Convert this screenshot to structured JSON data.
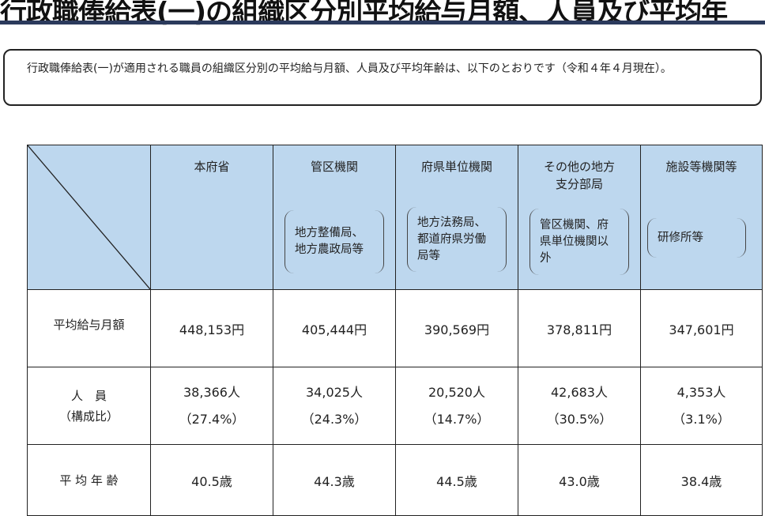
{
  "title": "行政職俸給表(一)の組織区分別平均給与月額、人員及び平均年",
  "note": "行政職俸給表(一)が適用される職員の組織区分別の平均給与月額、人員及び平均年齢は、以下のとおりです（令和４年４月現在）。",
  "table": {
    "columns": [
      {
        "name": "本府省",
        "detail": ""
      },
      {
        "name": "管区機関",
        "detail": "地方整備局、地方農政局等"
      },
      {
        "name": "府県単位機関",
        "detail": "地方法務局、都道府県労働局等"
      },
      {
        "name": "その他の地方支分部局",
        "detail": "管区機関、府県単位機関以外"
      },
      {
        "name": "施設等機関等",
        "detail": "研修所等"
      }
    ],
    "rows": [
      {
        "label": "平均給与月額",
        "values": [
          "448,153円",
          "405,444円",
          "390,569円",
          "378,811円",
          "347,601円"
        ]
      },
      {
        "label": "人　員",
        "label2": "（構成比）",
        "values": [
          "38,366人",
          "34,025人",
          "20,520人",
          "42,683人",
          "4,353人"
        ],
        "ratios": [
          "（27.4%）",
          "（24.3%）",
          "（14.7%）",
          "（30.5%）",
          "（3.1%）"
        ]
      },
      {
        "label": "平 均 年 齢",
        "values": [
          "40.5歳",
          "44.3歳",
          "44.5歳",
          "43.0歳",
          "38.4歳"
        ]
      }
    ]
  }
}
